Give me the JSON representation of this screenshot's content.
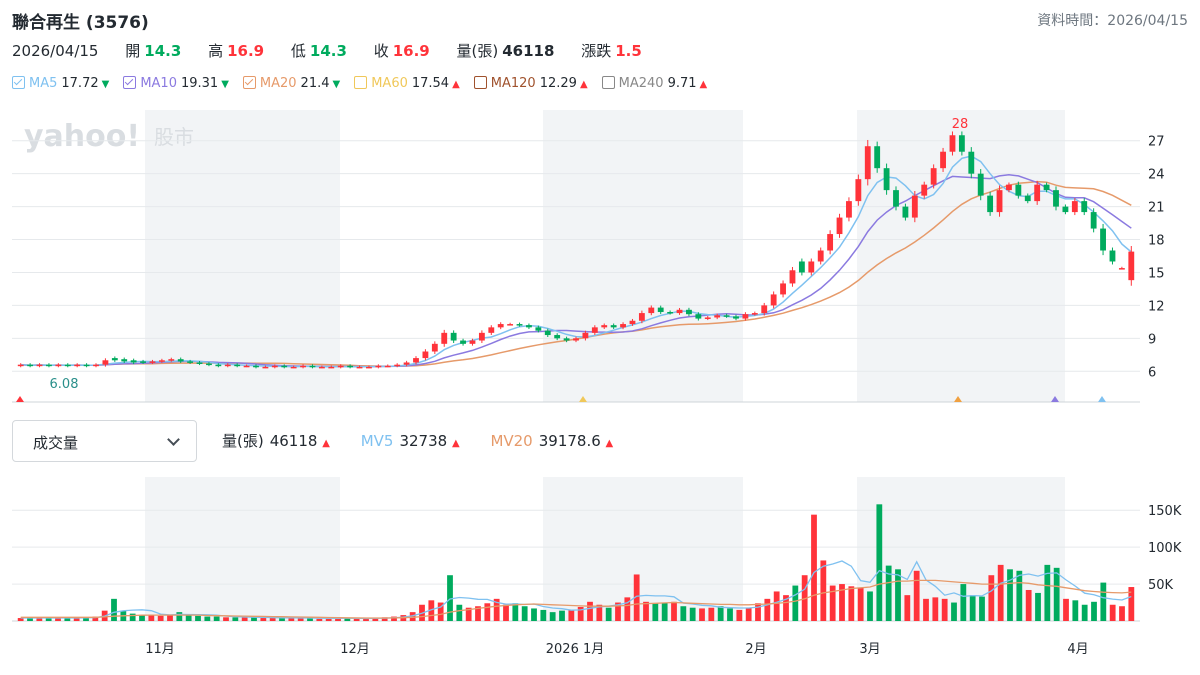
{
  "header": {
    "title": "聯合再生 (3576)",
    "data_time": "資料時間：2026/04/15"
  },
  "quote": {
    "date": "2026/04/15",
    "open_label": "開",
    "open": "14.3",
    "high_label": "高",
    "high": "16.9",
    "low_label": "低",
    "low": "14.3",
    "close_label": "收",
    "close": "16.9",
    "volume_label": "量(張)",
    "volume": "46118",
    "change_label": "漲跌",
    "change": "1.5"
  },
  "ma_legend": [
    {
      "name": "MA5",
      "value": "17.72",
      "dir": "down",
      "color": "#7fc1f0",
      "checked": true
    },
    {
      "name": "MA10",
      "value": "19.31",
      "dir": "down",
      "color": "#8b7ae0",
      "checked": true
    },
    {
      "name": "MA20",
      "value": "21.4",
      "dir": "down",
      "color": "#e69a6a",
      "checked": true
    },
    {
      "name": "MA60",
      "value": "17.54",
      "dir": "up",
      "color": "#f0c85a",
      "checked": false
    },
    {
      "name": "MA120",
      "value": "12.29",
      "dir": "up",
      "color": "#a0522d",
      "checked": false
    },
    {
      "name": "MA240",
      "value": "9.71",
      "dir": "up",
      "color": "#888888",
      "checked": false
    }
  ],
  "watermark": {
    "brand": "yahoo!",
    "section": "股市"
  },
  "volume_panel": {
    "selector_label": "成交量",
    "vol_label": "量(張)",
    "vol_value": "46118",
    "mv5_label": "MV5",
    "mv5_value": "32738",
    "mv20_label": "MV20",
    "mv20_value": "39178.6"
  },
  "colors": {
    "up": "#ff333a",
    "down": "#00ab5e",
    "grid": "#e6e9ec",
    "shade": "#f2f4f6"
  },
  "chart_data": [
    {
      "type": "candlestick",
      "title": "",
      "y_ticks": [
        6,
        9,
        12,
        15,
        18,
        21,
        24,
        27
      ],
      "ylim": [
        3.2,
        29.8
      ],
      "x_tick_labels": [
        "11月",
        "12月",
        "2026 1月",
        "2月",
        "3月",
        "4月"
      ],
      "annotations": {
        "max_label": "28",
        "min_label": "6.08"
      },
      "shaded_month_bands": true,
      "grid": true,
      "candles_open_close": [
        [
          6.5,
          6.6
        ],
        [
          6.6,
          6.5
        ],
        [
          6.5,
          6.6
        ],
        [
          6.6,
          6.5
        ],
        [
          6.5,
          6.6
        ],
        [
          6.6,
          6.5
        ],
        [
          6.5,
          6.6
        ],
        [
          6.6,
          6.5
        ],
        [
          6.5,
          6.6
        ],
        [
          6.6,
          7.0
        ],
        [
          7.2,
          7.0
        ],
        [
          7.1,
          6.9
        ],
        [
          7.0,
          6.8
        ],
        [
          6.9,
          6.8
        ],
        [
          6.8,
          6.9
        ],
        [
          6.9,
          7.0
        ],
        [
          7.0,
          7.1
        ],
        [
          7.1,
          6.9
        ],
        [
          6.9,
          6.8
        ],
        [
          6.8,
          6.7
        ],
        [
          6.7,
          6.6
        ],
        [
          6.6,
          6.5
        ],
        [
          6.5,
          6.6
        ],
        [
          6.6,
          6.5
        ],
        [
          6.5,
          6.5
        ],
        [
          6.5,
          6.4
        ],
        [
          6.4,
          6.4
        ],
        [
          6.4,
          6.5
        ],
        [
          6.5,
          6.4
        ],
        [
          6.4,
          6.4
        ],
        [
          6.4,
          6.5
        ],
        [
          6.5,
          6.4
        ],
        [
          6.4,
          6.4
        ],
        [
          6.4,
          6.4
        ],
        [
          6.4,
          6.5
        ],
        [
          6.5,
          6.4
        ],
        [
          6.4,
          6.4
        ],
        [
          6.4,
          6.4
        ],
        [
          6.4,
          6.5
        ],
        [
          6.5,
          6.5
        ],
        [
          6.5,
          6.6
        ],
        [
          6.6,
          6.8
        ],
        [
          6.8,
          7.2
        ],
        [
          7.2,
          7.8
        ],
        [
          7.8,
          8.5
        ],
        [
          8.5,
          9.5
        ],
        [
          9.5,
          8.8
        ],
        [
          8.8,
          8.5
        ],
        [
          8.5,
          8.8
        ],
        [
          8.8,
          9.5
        ],
        [
          9.5,
          10.0
        ],
        [
          10.0,
          10.3
        ],
        [
          10.3,
          10.3
        ],
        [
          10.3,
          10.2
        ],
        [
          10.2,
          10.0
        ],
        [
          10.0,
          9.7
        ],
        [
          9.7,
          9.3
        ],
        [
          9.3,
          9.0
        ],
        [
          9.0,
          8.8
        ],
        [
          8.8,
          9.0
        ],
        [
          9.0,
          9.5
        ],
        [
          9.5,
          10.0
        ],
        [
          10.0,
          10.2
        ],
        [
          10.2,
          10.0
        ],
        [
          10.0,
          10.3
        ],
        [
          10.3,
          10.6
        ],
        [
          10.6,
          11.3
        ],
        [
          11.3,
          11.8
        ],
        [
          11.8,
          11.4
        ],
        [
          11.4,
          11.3
        ],
        [
          11.3,
          11.6
        ],
        [
          11.6,
          11.2
        ],
        [
          11.2,
          10.8
        ],
        [
          10.8,
          10.9
        ],
        [
          10.9,
          11.1
        ],
        [
          11.1,
          11.0
        ],
        [
          11.0,
          10.8
        ],
        [
          10.8,
          11.2
        ],
        [
          11.2,
          11.3
        ],
        [
          11.3,
          12.0
        ],
        [
          12.0,
          13.0
        ],
        [
          13.0,
          14.0
        ],
        [
          14.0,
          15.2
        ],
        [
          16.0,
          15.0
        ],
        [
          15.0,
          16.0
        ],
        [
          16.0,
          17.0
        ],
        [
          17.0,
          18.5
        ],
        [
          18.5,
          20.0
        ],
        [
          20.0,
          21.5
        ],
        [
          21.5,
          23.5
        ],
        [
          23.5,
          26.5
        ],
        [
          26.5,
          24.5
        ],
        [
          24.5,
          22.5
        ],
        [
          22.5,
          21.0
        ],
        [
          21.0,
          20.0
        ],
        [
          20.0,
          22.0
        ],
        [
          22.0,
          23.0
        ],
        [
          23.0,
          24.5
        ],
        [
          24.5,
          26.0
        ],
        [
          26.0,
          27.5
        ],
        [
          27.5,
          26.0
        ],
        [
          26.0,
          24.0
        ],
        [
          24.0,
          22.0
        ],
        [
          22.0,
          20.5
        ],
        [
          20.5,
          22.5
        ],
        [
          22.5,
          23.0
        ],
        [
          23.0,
          22.0
        ],
        [
          22.0,
          21.5
        ],
        [
          21.5,
          23.0
        ],
        [
          23.0,
          22.5
        ],
        [
          22.5,
          21.0
        ],
        [
          21.0,
          20.5
        ],
        [
          20.5,
          21.5
        ],
        [
          21.5,
          20.5
        ],
        [
          20.5,
          19.0
        ],
        [
          19.0,
          17.0
        ],
        [
          17.0,
          16.0
        ],
        [
          15.4,
          15.4
        ],
        [
          14.3,
          16.9
        ]
      ]
    },
    {
      "type": "bar",
      "title": "",
      "y_ticks": [
        50000,
        100000,
        150000
      ],
      "y_tick_labels": [
        "50K",
        "100K",
        "150K"
      ],
      "ylim": [
        0,
        195000
      ],
      "series": [
        {
          "name": "量(張)",
          "values": [
            4000,
            4000,
            4000,
            4000,
            4000,
            4000,
            4000,
            5000,
            6000,
            14000,
            30000,
            14000,
            10000,
            8000,
            8000,
            7000,
            8000,
            12000,
            9000,
            7000,
            6000,
            6000,
            5000,
            5000,
            5000,
            5000,
            4000,
            4000,
            4000,
            4000,
            4000,
            4000,
            3000,
            3000,
            4000,
            4000,
            3000,
            3000,
            4000,
            5000,
            6000,
            8000,
            12000,
            22000,
            28000,
            25000,
            62000,
            22000,
            18000,
            20000,
            24000,
            30000,
            22000,
            24000,
            20000,
            17000,
            15000,
            12000,
            14000,
            15000,
            19000,
            26000,
            22000,
            18000,
            25000,
            32000,
            63000,
            26000,
            24000,
            25000,
            26000,
            20000,
            18000,
            17000,
            18000,
            20000,
            17000,
            15000,
            18000,
            24000,
            30000,
            40000,
            35000,
            48000,
            62000,
            144000,
            82000,
            48000,
            50000,
            47000,
            45000,
            40000,
            158000,
            75000,
            70000,
            35000,
            68000,
            30000,
            32000,
            30000,
            25000,
            50000,
            35000,
            33000,
            62000,
            76000,
            70000,
            68000,
            42000,
            38000,
            76000,
            72000,
            30000,
            28000,
            22000,
            26000,
            52000,
            22000,
            20000,
            46000
          ]
        },
        {
          "name": "MV5",
          "values": [
            4000,
            4000,
            4000,
            4000,
            4000,
            4000,
            4000,
            4200,
            4600,
            6600,
            11800,
            13800,
            14800,
            15200,
            14000,
            9400,
            8200,
            9000,
            8800,
            8600,
            8400,
            8000,
            6600,
            5800,
            5400,
            5200,
            5000,
            4600,
            4400,
            4200,
            4000,
            4000,
            3800,
            3600,
            3600,
            3800,
            3600,
            3400,
            3600,
            3800,
            4400,
            5200,
            7000,
            10600,
            15200,
            19000,
            29800,
            31800,
            31000,
            29400,
            29200,
            25200,
            22800,
            23200,
            22400,
            23000,
            19600,
            17600,
            16600,
            14600,
            15000,
            17200,
            19200,
            20000,
            22000,
            24600,
            33600,
            34600,
            34000,
            34000,
            32800,
            24200,
            23000,
            21200,
            20600,
            18600,
            18000,
            17600,
            17600,
            18800,
            21800,
            25400,
            29400,
            35400,
            43000,
            65800,
            74200,
            77200,
            81200,
            74200,
            54600,
            52400,
            68200,
            63600,
            62400,
            56400,
            80200,
            55600,
            47000,
            35000,
            38000,
            33400,
            34400,
            34000,
            40800,
            51200,
            55200,
            61800,
            63600,
            60800,
            64400,
            65200,
            55600,
            47200,
            37600,
            35600,
            31600,
            29600,
            28400,
            33200
          ]
        },
        {
          "name": "MV20",
          "values": [
            5000,
            5000,
            5000,
            5000,
            5000,
            5000,
            5000,
            5000,
            5000,
            5500,
            6500,
            7000,
            7500,
            7800,
            8000,
            8000,
            8000,
            8000,
            8000,
            8000,
            7500,
            7200,
            7000,
            6800,
            6600,
            6400,
            6200,
            6000,
            5800,
            5600,
            5400,
            5200,
            5000,
            4800,
            4600,
            4400,
            4200,
            4000,
            4000,
            4000,
            4200,
            4500,
            5000,
            6000,
            7500,
            9000,
            12000,
            14000,
            15500,
            17000,
            18500,
            20000,
            21000,
            22000,
            22500,
            23000,
            22500,
            22000,
            21500,
            21000,
            20500,
            20000,
            20000,
            20000,
            20500,
            21000,
            23000,
            23500,
            24000,
            24500,
            25000,
            24500,
            24000,
            23500,
            23000,
            22500,
            22500,
            22000,
            22000,
            22500,
            23000,
            24000,
            25000,
            27000,
            30000,
            35000,
            38000,
            40000,
            42000,
            44000,
            45000,
            46000,
            50000,
            52000,
            54000,
            54000,
            55000,
            55000,
            55000,
            54000,
            53000,
            52000,
            51000,
            50000,
            50000,
            50000,
            51000,
            52000,
            51000,
            49000,
            48000,
            47000,
            45000,
            43000,
            41000,
            40000,
            39000,
            38500,
            38000,
            39178.6
          ]
        }
      ]
    }
  ]
}
